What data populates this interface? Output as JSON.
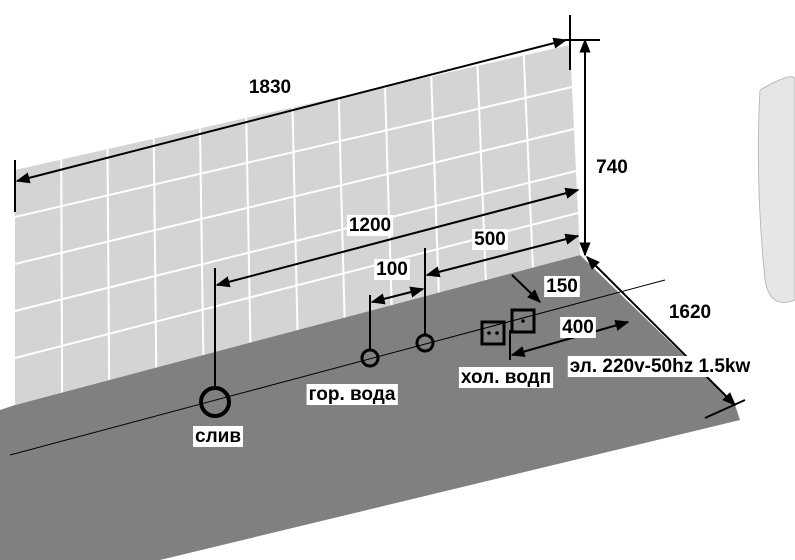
{
  "dimensions": {
    "wall_length": "1830",
    "wall_height": "740",
    "drain_offset": "1200",
    "cold_offset": "500",
    "hot_cold_gap": "100",
    "socket_offset": "150",
    "floor_depth": "1620",
    "socket_depth": "400"
  },
  "labels": {
    "power": "эл. 220v-50hz 1.5kw",
    "cold_water": "хол. водп",
    "hot_water": "гор. вода",
    "drain": "слив"
  }
}
